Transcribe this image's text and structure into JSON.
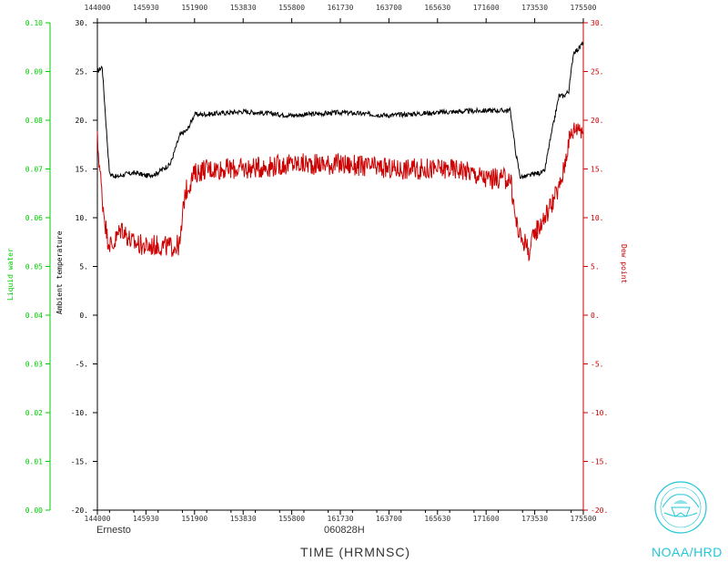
{
  "chart_data": {
    "type": "line",
    "xlabel": "TIME (HRMNSC)",
    "storm_name": "Ernesto",
    "date_label": "060828H",
    "x_ticks": [
      "144000",
      "145930",
      "151900",
      "153830",
      "155800",
      "161730",
      "163700",
      "165630",
      "171600",
      "173530",
      "175500"
    ],
    "xlim": [
      "144000",
      "175500"
    ],
    "left_outer_axis": {
      "label": "Liquid water",
      "color": "#00cc00",
      "ticks": [
        "0.00",
        "0.01",
        "0.02",
        "0.03",
        "0.04",
        "0.05",
        "0.06",
        "0.07",
        "0.08",
        "0.09",
        "0.10"
      ],
      "ylim": [
        0.0,
        0.1
      ]
    },
    "left_axis": {
      "label": "Ambient temperature",
      "color": "#000000",
      "ticks": [
        "-20.",
        "-15.",
        "-10.",
        "-5.",
        "0.",
        "5.",
        "10.",
        "15.",
        "20.",
        "25.",
        "30."
      ],
      "ylim": [
        -20,
        30
      ]
    },
    "right_axis": {
      "label": "Dew point",
      "color": "#cc0000",
      "ticks": [
        "-20.",
        "-15.",
        "-10.",
        "-5.",
        "0.",
        "5.",
        "10.",
        "15.",
        "20.",
        "25.",
        "30."
      ],
      "ylim": [
        -20,
        30
      ]
    },
    "series": [
      {
        "name": "Ambient temperature",
        "color": "#000000",
        "x_fraction": [
          0.0,
          0.01,
          0.02,
          0.025,
          0.04,
          0.06,
          0.08,
          0.1,
          0.12,
          0.15,
          0.17,
          0.185,
          0.2,
          0.22,
          0.3,
          0.4,
          0.5,
          0.6,
          0.7,
          0.8,
          0.85,
          0.86,
          0.87,
          0.88,
          0.9,
          0.92,
          0.93,
          0.95,
          0.96,
          0.97,
          0.98,
          0.99,
          1.0
        ],
        "values": [
          25.0,
          25.5,
          18.0,
          14.5,
          14.2,
          14.5,
          14.6,
          14.3,
          14.5,
          15.5,
          18.5,
          19.0,
          20.6,
          20.6,
          20.9,
          20.5,
          20.8,
          20.5,
          20.8,
          21.0,
          21.0,
          17.0,
          14.2,
          14.2,
          14.5,
          14.7,
          17.5,
          22.5,
          22.5,
          23.0,
          27.0,
          27.3,
          28.0
        ]
      },
      {
        "name": "Dew point",
        "color": "#cc0000",
        "x_fraction": [
          0.0,
          0.01,
          0.02,
          0.03,
          0.05,
          0.07,
          0.09,
          0.1,
          0.12,
          0.15,
          0.17,
          0.18,
          0.2,
          0.22,
          0.3,
          0.4,
          0.5,
          0.6,
          0.7,
          0.75,
          0.8,
          0.85,
          0.86,
          0.87,
          0.88,
          0.89,
          0.9,
          0.92,
          0.95,
          0.96,
          0.97,
          0.98,
          0.99,
          1.0
        ],
        "values": [
          18.0,
          12.0,
          8.0,
          7.0,
          9.0,
          7.5,
          7.2,
          7.0,
          7.2,
          7.0,
          7.2,
          12.5,
          14.5,
          15.0,
          15.0,
          15.5,
          15.5,
          15.0,
          15.0,
          15.0,
          14.0,
          14.0,
          10.0,
          8.0,
          7.5,
          6.5,
          8.5,
          10.0,
          13.0,
          15.0,
          18.0,
          19.0,
          19.5,
          19.0
        ]
      }
    ],
    "agency_label": "NOAA/HRD"
  }
}
